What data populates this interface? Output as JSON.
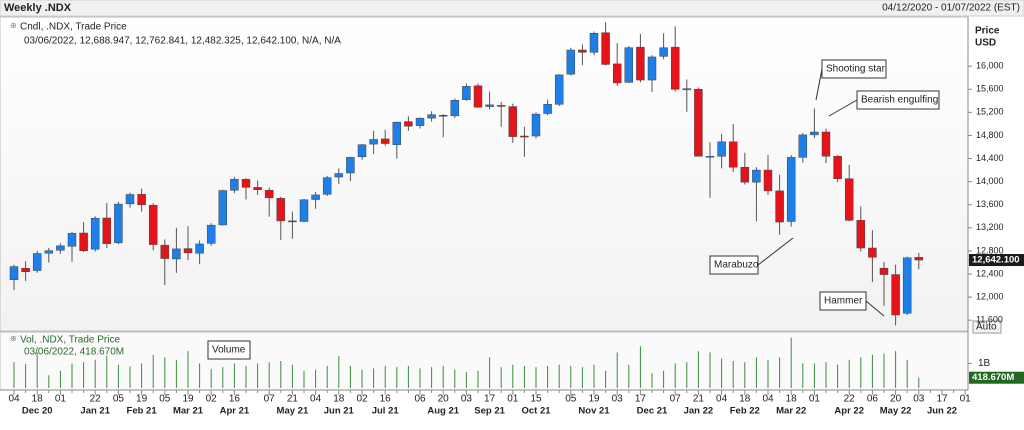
{
  "chart_data": {
    "type": "candlestick",
    "title": "Weekly .NDX",
    "date_range": "04/12/2020 - 01/07/2022 (EST)",
    "legend_title": "Cndl, .NDX, Trade Price",
    "legend_values": "03/06/2022, 12,688.947, 12,762.841, 12,482.325, 12,642.100, N/A, N/A",
    "y_axis_label": "Price",
    "y_axis_unit": "USD",
    "scale_button": "Auto",
    "last_price_label": "12,642.100",
    "up_color": "#1e7fe8",
    "down_color": "#e5141b",
    "categories": [
      "04",
      null,
      "18",
      null,
      "01",
      null,
      null,
      "22",
      null,
      "05",
      null,
      "19",
      null,
      "05",
      null,
      "19",
      null,
      "02",
      null,
      "16",
      null,
      null,
      "07",
      null,
      "21",
      null,
      "04",
      null,
      "18",
      null,
      "02",
      null,
      "16",
      null,
      null,
      "06",
      null,
      "20",
      null,
      "03",
      null,
      "17",
      null,
      "01",
      null,
      "15",
      null,
      null,
      "05",
      null,
      "19",
      null,
      "03",
      null,
      "17",
      null,
      null,
      "07",
      null,
      "21",
      null,
      "04",
      null,
      "18",
      null,
      "04",
      null,
      "18",
      null,
      "01",
      null,
      null,
      "22",
      null,
      "06",
      null,
      "20",
      null,
      "03",
      null,
      "17",
      null,
      "01"
    ],
    "months": [
      null,
      null,
      "Dec 20",
      null,
      null,
      null,
      null,
      "Jan 21",
      null,
      null,
      null,
      "Feb 21",
      null,
      null,
      null,
      "Mar 21",
      null,
      null,
      null,
      "Apr 21",
      null,
      null,
      null,
      null,
      "May 21",
      null,
      null,
      null,
      "Jun 21",
      null,
      null,
      null,
      "Jul 21",
      null,
      null,
      null,
      null,
      "Aug 21",
      null,
      null,
      null,
      "Sep 21",
      null,
      null,
      null,
      "Oct 21",
      null,
      null,
      null,
      null,
      "Nov 21",
      null,
      null,
      null,
      null,
      "Dec 21",
      null,
      null,
      null,
      "Jan 22",
      null,
      null,
      null,
      "Feb 22",
      null,
      null,
      null,
      "Mar 22",
      null,
      null,
      null,
      null,
      "Apr 22",
      null,
      null,
      null,
      "May 22",
      null,
      null,
      null,
      "Jun 22",
      null,
      null
    ],
    "open": [
      12300,
      12500,
      12460,
      12760,
      12810,
      12880,
      13110,
      12830,
      13370,
      12940,
      13615,
      13780,
      13590,
      12900,
      12660,
      12840,
      12760,
      12930,
      13250,
      13850,
      14040,
      13900,
      13850,
      13710,
      13320,
      13310,
      13690,
      13780,
      14080,
      14150,
      14430,
      14650,
      14740,
      14640,
      15040,
      14970,
      15100,
      15150,
      15140,
      15420,
      15660,
      15300,
      15320,
      15300,
      14790,
      14790,
      15180,
      15340,
      15860,
      16280,
      16240,
      16580,
      16040,
      15720,
      16330,
      15760,
      16170,
      16330,
      15590,
      15600,
      14440,
      14440,
      14690,
      14250,
      13990,
      14200,
      13840,
      13310,
      14420,
      14810,
      14860,
      14440,
      14050,
      13330,
      12850,
      12500,
      12390,
      11720,
      12688.947,
      null,
      null,
      null,
      null
    ],
    "high": [
      12560,
      12620,
      12800,
      12850,
      12930,
      13130,
      13300,
      13400,
      13630,
      13650,
      13810,
      13880,
      13630,
      13000,
      13200,
      13230,
      12980,
      13280,
      13860,
      14080,
      14060,
      14020,
      13900,
      13740,
      13480,
      13700,
      13820,
      14100,
      14230,
      14430,
      14650,
      14880,
      14900,
      15040,
      15130,
      15110,
      15220,
      15170,
      15440,
      15700,
      15700,
      15560,
      15380,
      15350,
      14950,
      15200,
      15420,
      15860,
      16320,
      16380,
      16600,
      16760,
      16400,
      16350,
      16560,
      16190,
      16570,
      16690,
      15770,
      15630,
      14680,
      14830,
      15000,
      14500,
      14250,
      14460,
      14120,
      14460,
      14840,
      15270,
      14920,
      14460,
      14290,
      13570,
      13160,
      12610,
      12560,
      12700,
      12762.841,
      null,
      null,
      null,
      null
    ],
    "low": [
      12120,
      12280,
      12420,
      12600,
      12750,
      12610,
      12780,
      12790,
      12850,
      12920,
      13550,
      13480,
      12810,
      12210,
      12420,
      12640,
      12570,
      12890,
      13240,
      13800,
      13690,
      13770,
      13390,
      12990,
      13010,
      13300,
      13530,
      13750,
      13960,
      14010,
      14380,
      14480,
      14620,
      14400,
      14880,
      14920,
      15040,
      14770,
      15100,
      15400,
      15280,
      15250,
      14950,
      14670,
      14430,
      14750,
      15150,
      15310,
      15840,
      16020,
      16190,
      16010,
      15660,
      15710,
      15720,
      15550,
      16120,
      15560,
      15210,
      14440,
      13720,
      14230,
      14170,
      13950,
      13310,
      13770,
      13080,
      13220,
      14330,
      14750,
      14320,
      13990,
      13310,
      12790,
      12260,
      11850,
      11510,
      11690,
      12482.325,
      null,
      null,
      null,
      null
    ],
    "close": [
      12528,
      12440,
      12755,
      12805,
      12888,
      13105,
      12803,
      13366,
      12925,
      13611,
      13777,
      13600,
      12910,
      12668,
      12835,
      12766,
      12921,
      13246,
      13846,
      14041,
      13900,
      13860,
      13720,
      13320,
      13310,
      13686,
      13770,
      14070,
      14141,
      14420,
      14640,
      14730,
      14660,
      15030,
      14960,
      15100,
      15160,
      15140,
      15410,
      15650,
      15290,
      15330,
      15310,
      14780,
      14780,
      15170,
      15340,
      15850,
      16280,
      16240,
      16570,
      16030,
      15710,
      16320,
      15760,
      16160,
      16320,
      15600,
      15610,
      14440,
      14440,
      14690,
      14250,
      13990,
      14200,
      13840,
      13300,
      14420,
      14810,
      14860,
      14440,
      14050,
      13330,
      12850,
      12690,
      12390,
      11690,
      12681,
      12642.1,
      null,
      null,
      null,
      null
    ],
    "ylim": [
      11430,
      16800
    ],
    "yticks": [
      {
        "value": 11600,
        "label": "11,600"
      },
      {
        "value": 12000,
        "label": "12,000"
      },
      {
        "value": 12400,
        "label": "12,400"
      },
      {
        "value": 12800,
        "label": "12,800"
      },
      {
        "value": 13200,
        "label": "13,200"
      },
      {
        "value": 13600,
        "label": "13,600"
      },
      {
        "value": 14000,
        "label": "14,000"
      },
      {
        "value": 14400,
        "label": "14,400"
      },
      {
        "value": 14800,
        "label": "14,800"
      },
      {
        "value": 15200,
        "label": "15,200"
      },
      {
        "value": 15600,
        "label": "15,600"
      },
      {
        "value": 16000,
        "label": "16,000"
      }
    ],
    "annotations": [
      "Shooting star",
      "Bearish engulfing",
      "Marabuzo",
      "Hammer"
    ],
    "volume": {
      "legend_title": "Vol, .NDX, Trade Price",
      "legend_values": "03/06/2022, 418.670M",
      "annotation": "Volume",
      "color": "#3a8a3a",
      "last_label": "418.670M",
      "values": [
        1050000000,
        980000000,
        1450000000,
        520000000,
        700000000,
        1000000000,
        1050000000,
        1150000000,
        1300000000,
        950000000,
        880000000,
        1000000000,
        1350000000,
        1250000000,
        1150000000,
        1500000000,
        1000000000,
        780000000,
        850000000,
        1000000000,
        900000000,
        1000000000,
        1050000000,
        1100000000,
        950000000,
        700000000,
        750000000,
        900000000,
        1300000000,
        900000000,
        750000000,
        800000000,
        900000000,
        850000000,
        900000000,
        800000000,
        850000000,
        900000000,
        750000000,
        650000000,
        700000000,
        1250000000,
        850000000,
        950000000,
        900000000,
        850000000,
        900000000,
        950000000,
        900000000,
        850000000,
        950000000,
        700000000,
        1450000000,
        950000000,
        1700000000,
        600000000,
        700000000,
        1000000000,
        1050000000,
        1500000000,
        1450000000,
        1200000000,
        1100000000,
        1050000000,
        1250000000,
        1150000000,
        1250000000,
        2050000000,
        1000000000,
        1000000000,
        1050000000,
        950000000,
        1150000000,
        1250000000,
        1350000000,
        1400000000,
        1500000000,
        1150000000,
        418670000,
        null,
        null,
        null,
        null
      ],
      "ylim": [
        0,
        2200000000
      ],
      "yticks": [
        {
          "value": 1000000000,
          "label": "1B"
        }
      ]
    }
  }
}
